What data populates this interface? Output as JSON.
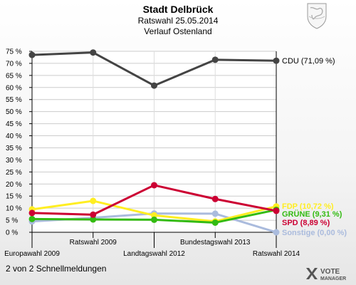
{
  "header": {
    "title": "Stadt Delbrück",
    "subtitle": "Ratswahl 25.05.2014",
    "subtitle2": "Verlauf Ostenland"
  },
  "footer": {
    "text": "2 von 2 Schnellmeldungen"
  },
  "logo": {
    "line1": "VOTE",
    "line2": "MANAGER"
  },
  "crest": {
    "icon": "coat-of-arms-icon"
  },
  "chart_data": {
    "type": "line",
    "title": "Stadt Delbrück",
    "categories": [
      "Europawahl 2009",
      "Ratswahl 2009",
      "Landtagswahl 2012",
      "Bundestagswahl 2013",
      "Ratswahl 2014"
    ],
    "ylim": [
      0,
      75
    ],
    "yticks": [
      "0 %",
      "5 %",
      "10 %",
      "15 %",
      "20 %",
      "25 %",
      "30 %",
      "35 %",
      "40 %",
      "45 %",
      "50 %",
      "55 %",
      "60 %",
      "65 %",
      "70 %",
      "75 %"
    ],
    "grid": true,
    "series": [
      {
        "name": "CDU",
        "label": "CDU (71,09 %)",
        "color": "#444444",
        "values": [
          73.5,
          74.5,
          60.8,
          71.5,
          71.09
        ]
      },
      {
        "name": "FDP",
        "label": "FDP (10,72 %)",
        "color": "#ffee22",
        "values": [
          9.5,
          13.0,
          7.0,
          4.5,
          10.72
        ]
      },
      {
        "name": "GRÜNE",
        "label": "GRÜNE (9,31 %)",
        "color": "#33bb11",
        "values": [
          5.5,
          5.3,
          5.2,
          4.0,
          9.31
        ]
      },
      {
        "name": "SPD",
        "label": "SPD (8,89 %)",
        "color": "#cc0033",
        "values": [
          8.0,
          7.3,
          19.5,
          13.8,
          8.89
        ]
      },
      {
        "name": "Sonstige",
        "label": "Sonstige (0,00 %)",
        "color": "#aabbdd",
        "values": [
          4.5,
          6.0,
          7.8,
          7.7,
          0.0
        ]
      }
    ]
  }
}
